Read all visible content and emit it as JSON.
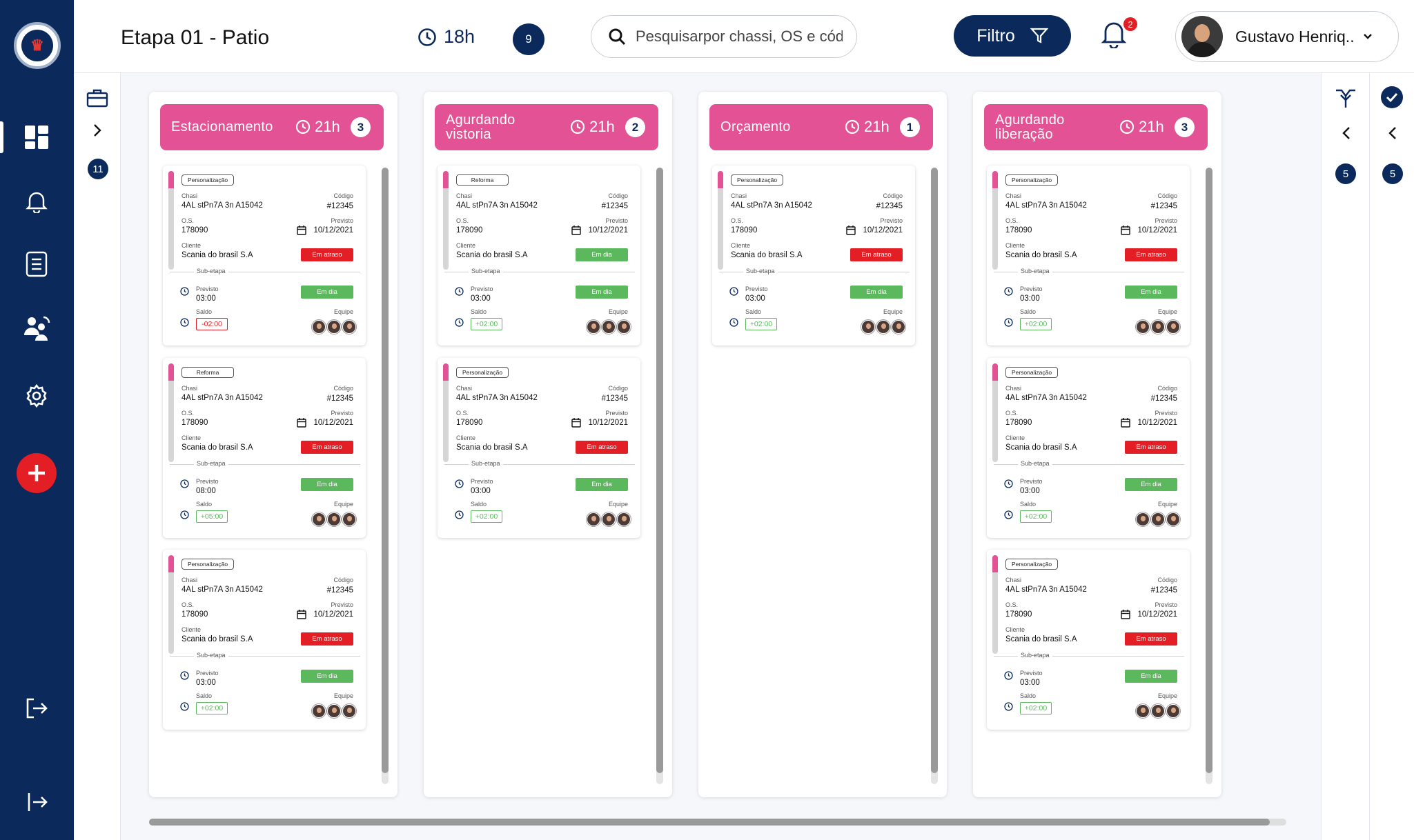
{
  "header": {
    "title": "Etapa 01 - Patio",
    "hours": "18h",
    "count": "9",
    "search_placeholder": "Pesquisarpor chassi, OS e código...",
    "filter_label": "Filtro",
    "notifications": "2",
    "user_name": "Gustavo Henriq.."
  },
  "subsidebar": {
    "count": "11"
  },
  "right_panel": {
    "count_a": "5",
    "count_b": "5"
  },
  "labels": {
    "chassi": "Chasi",
    "codigo": "Código",
    "os": "O.S.",
    "previsto": "Previsto",
    "cliente": "Cliente",
    "subetapa": "Sub-etapa",
    "saldo": "Saldo",
    "equipe": "Equipe"
  },
  "columns": [
    {
      "title": "Estacionamento",
      "hours": "21h",
      "count": "3",
      "cards": [
        {
          "tag": "Personalização",
          "chassi": "4AL stPn7A 3n A15042",
          "codigo": "#12345",
          "os": "178090",
          "date": "10/12/2021",
          "cliente": "Scania do brasil S.A",
          "status": "Em atraso",
          "status_type": "late",
          "sub_status": "Em dia",
          "sub_previsto": "03:00",
          "saldo": "-02:00",
          "saldo_type": "negative"
        },
        {
          "tag": "Reforma",
          "chassi": "4AL stPn7A 3n A15042",
          "codigo": "#12345",
          "os": "178090",
          "date": "10/12/2021",
          "cliente": "Scania do brasil S.A",
          "status": "Em atraso",
          "status_type": "late",
          "sub_status": "Em dia",
          "sub_previsto": "08:00",
          "saldo": "+05:00",
          "saldo_type": "positive"
        },
        {
          "tag": "Personalização",
          "chassi": "4AL stPn7A 3n A15042",
          "codigo": "#12345",
          "os": "178090",
          "date": "10/12/2021",
          "cliente": "Scania do brasil S.A",
          "status": "Em atraso",
          "status_type": "late",
          "sub_status": "Em dia",
          "sub_previsto": "03:00",
          "saldo": "+02:00",
          "saldo_type": "positive"
        }
      ]
    },
    {
      "title": "Agurdando vistoria",
      "hours": "21h",
      "count": "2",
      "cards": [
        {
          "tag": "Reforma",
          "chassi": "4AL stPn7A 3n A15042",
          "codigo": "#12345",
          "os": "178090",
          "date": "10/12/2021",
          "cliente": "Scania do brasil S.A",
          "status": "Em dia",
          "status_type": "ontime",
          "sub_status": "Em dia",
          "sub_previsto": "03:00",
          "saldo": "+02:00",
          "saldo_type": "positive"
        },
        {
          "tag": "Personalização",
          "chassi": "4AL stPn7A 3n A15042",
          "codigo": "#12345",
          "os": "178090",
          "date": "10/12/2021",
          "cliente": "Scania do brasil S.A",
          "status": "Em atraso",
          "status_type": "late",
          "sub_status": "Em dia",
          "sub_previsto": "03:00",
          "saldo": "+02:00",
          "saldo_type": "positive"
        }
      ]
    },
    {
      "title": "Orçamento",
      "hours": "21h",
      "count": "1",
      "cards": [
        {
          "tag": "Personalização",
          "chassi": "4AL stPn7A 3n A15042",
          "codigo": "#12345",
          "os": "178090",
          "date": "10/12/2021",
          "cliente": "Scania do brasil S.A",
          "status": "Em atraso",
          "status_type": "late",
          "sub_status": "Em dia",
          "sub_previsto": "03:00",
          "saldo": "+02:00",
          "saldo_type": "positive"
        }
      ]
    },
    {
      "title": "Agurdando liberação",
      "hours": "21h",
      "count": "3",
      "cards": [
        {
          "tag": "Personalização",
          "chassi": "4AL stPn7A 3n A15042",
          "codigo": "#12345",
          "os": "178090",
          "date": "10/12/2021",
          "cliente": "Scania do brasil S.A",
          "status": "Em atraso",
          "status_type": "late",
          "sub_status": "Em dia",
          "sub_previsto": "03:00",
          "saldo": "+02:00",
          "saldo_type": "positive"
        },
        {
          "tag": "Personalização",
          "chassi": "4AL stPn7A 3n A15042",
          "codigo": "#12345",
          "os": "178090",
          "date": "10/12/2021",
          "cliente": "Scania do brasil S.A",
          "status": "Em atraso",
          "status_type": "late",
          "sub_status": "Em dia",
          "sub_previsto": "03:00",
          "saldo": "+02:00",
          "saldo_type": "positive"
        },
        {
          "tag": "Personalização",
          "chassi": "4AL stPn7A 3n A15042",
          "codigo": "#12345",
          "os": "178090",
          "date": "10/12/2021",
          "cliente": "Scania do brasil S.A",
          "status": "Em atraso",
          "status_type": "late",
          "sub_status": "Em dia",
          "sub_previsto": "03:00",
          "saldo": "+02:00",
          "saldo_type": "positive"
        }
      ]
    }
  ],
  "colors": {
    "navy": "#0b2a5b",
    "pink": "#e25294",
    "late": "#e31e24",
    "ontime": "#5cb85c"
  }
}
